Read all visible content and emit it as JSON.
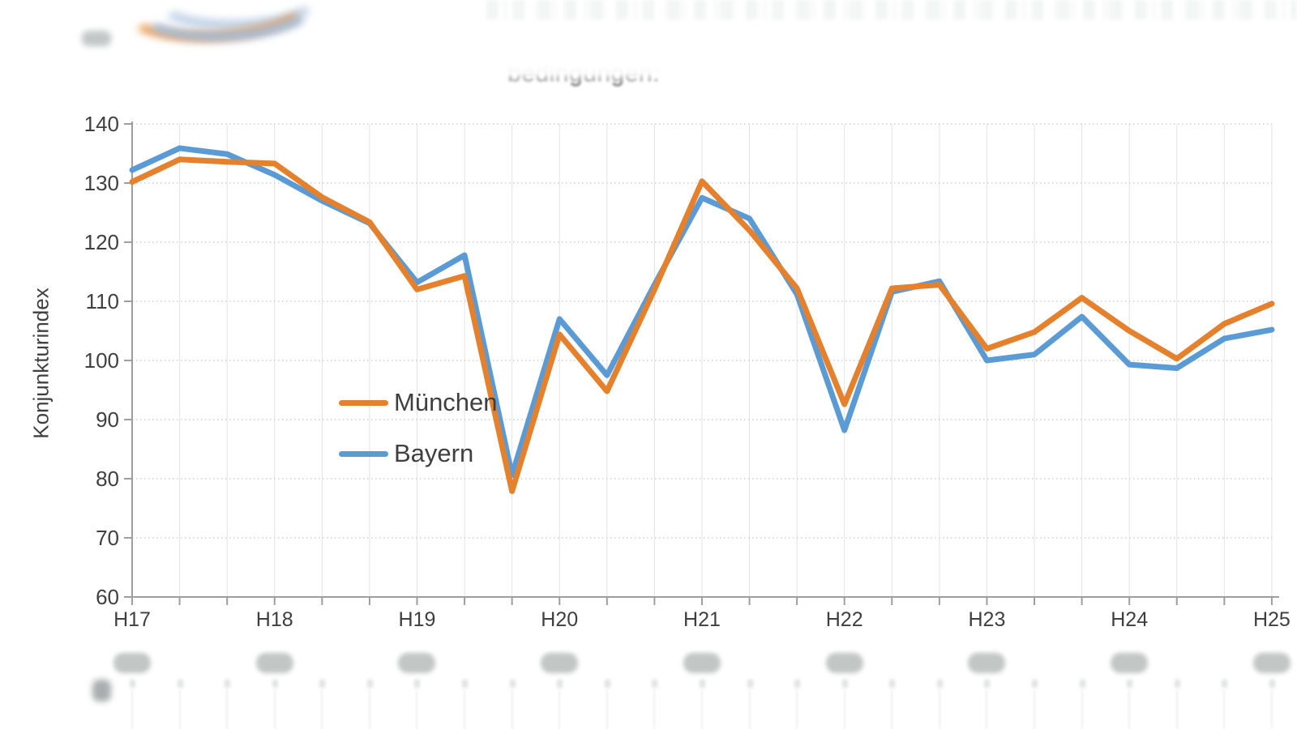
{
  "page": {
    "background": "#ffffff"
  },
  "blurred_elements": [
    "top-left-logo",
    "top-left-smudge",
    "top-edge-texture",
    "title-upper-half",
    "per-year-footnote-blobs",
    "bottom-cutoff-strip"
  ],
  "chart_data": {
    "type": "line",
    "title_fragment": "bedingungen:",
    "ylabel": "Konjunkturindex",
    "ylim": [
      60,
      140
    ],
    "y_ticks": [
      60,
      70,
      80,
      90,
      100,
      110,
      120,
      130,
      140
    ],
    "x_major_labels": [
      "H17",
      "H18",
      "H19",
      "H20",
      "H21",
      "H22",
      "H23",
      "H24",
      "H25"
    ],
    "points_per_year": 3,
    "grid": {
      "vertical": true,
      "horizontal_dotted": true
    },
    "legend_position": "center-left-inside",
    "series": [
      {
        "name": "München",
        "color": "#e5802c",
        "values": [
          130.2,
          134.0,
          133.6,
          133.3,
          127.6,
          123.4,
          112.0,
          114.3,
          77.9,
          104.4,
          94.8,
          112.0,
          130.3,
          122.0,
          112.2,
          92.6,
          112.2,
          112.8,
          102.0,
          104.8,
          110.6,
          105.0,
          100.3,
          106.2,
          109.6
        ]
      },
      {
        "name": "Bayern",
        "color": "#5b9bd5",
        "values": [
          132.2,
          135.9,
          134.9,
          131.4,
          127.0,
          123.2,
          113.2,
          117.8,
          80.6,
          107.0,
          97.5,
          112.8,
          127.5,
          124.0,
          111.2,
          88.2,
          111.6,
          113.4,
          100.0,
          101.0,
          107.4,
          99.3,
          98.7,
          103.7,
          105.2
        ]
      }
    ],
    "style": {
      "axis_color": "#9e9e9e",
      "grid_v_color": "#e3e3e3",
      "grid_h_color": "#cfcfcf",
      "tick_label_color": "#3f3f3f",
      "line_width": 7
    }
  }
}
